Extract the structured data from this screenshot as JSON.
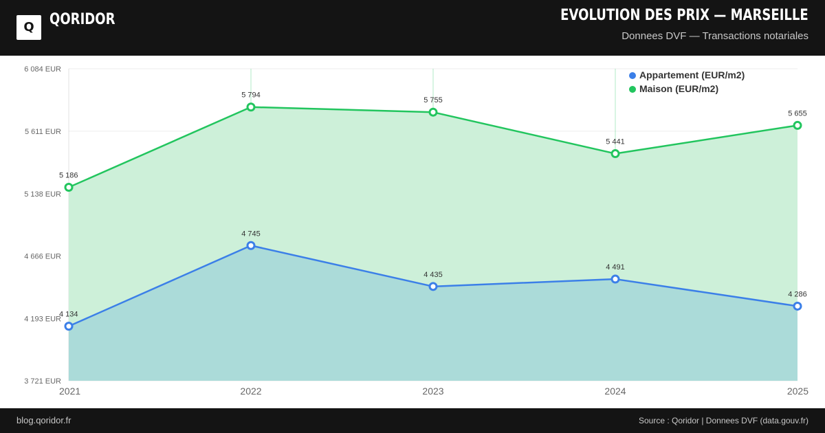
{
  "header": {
    "brand": "QORIDOR",
    "logo_letter": "Q",
    "title": "EVOLUTION DES PRIX — MARSEILLE",
    "subtitle": "Donnees DVF — Transactions notariales"
  },
  "footer": {
    "left": "blog.qoridor.fr",
    "right": "Source : Qoridor | Donnees DVF (data.gouv.fr)"
  },
  "colors": {
    "appartement": "#3b7fe8",
    "maison": "#22c55e",
    "maison_fill": "#cdf0d9",
    "appartement_fill": "#abdbd9"
  },
  "chart_data": {
    "type": "area",
    "categories": [
      "2021",
      "2022",
      "2023",
      "2024",
      "2025"
    ],
    "ylim": [
      3721,
      6084
    ],
    "yticks": [
      3721,
      4193,
      4666,
      5138,
      5611,
      6084
    ],
    "ytick_labels": [
      "3 721 EUR",
      "4 193 EUR",
      "4 666 EUR",
      "5 138 EUR",
      "5 611 EUR",
      "6 084 EUR"
    ],
    "legend_position": "top-right",
    "grid": true,
    "series": [
      {
        "name": "Appartement (EUR/m2)",
        "values": [
          4134,
          4745,
          4435,
          4491,
          4286
        ],
        "labels": [
          "4 134",
          "4 745",
          "4 435",
          "4 491",
          "4 286"
        ]
      },
      {
        "name": "Maison (EUR/m2)",
        "values": [
          5186,
          5794,
          5755,
          5441,
          5655
        ],
        "labels": [
          "5 186",
          "5 794",
          "5 755",
          "5 441",
          "5 655"
        ]
      }
    ]
  }
}
